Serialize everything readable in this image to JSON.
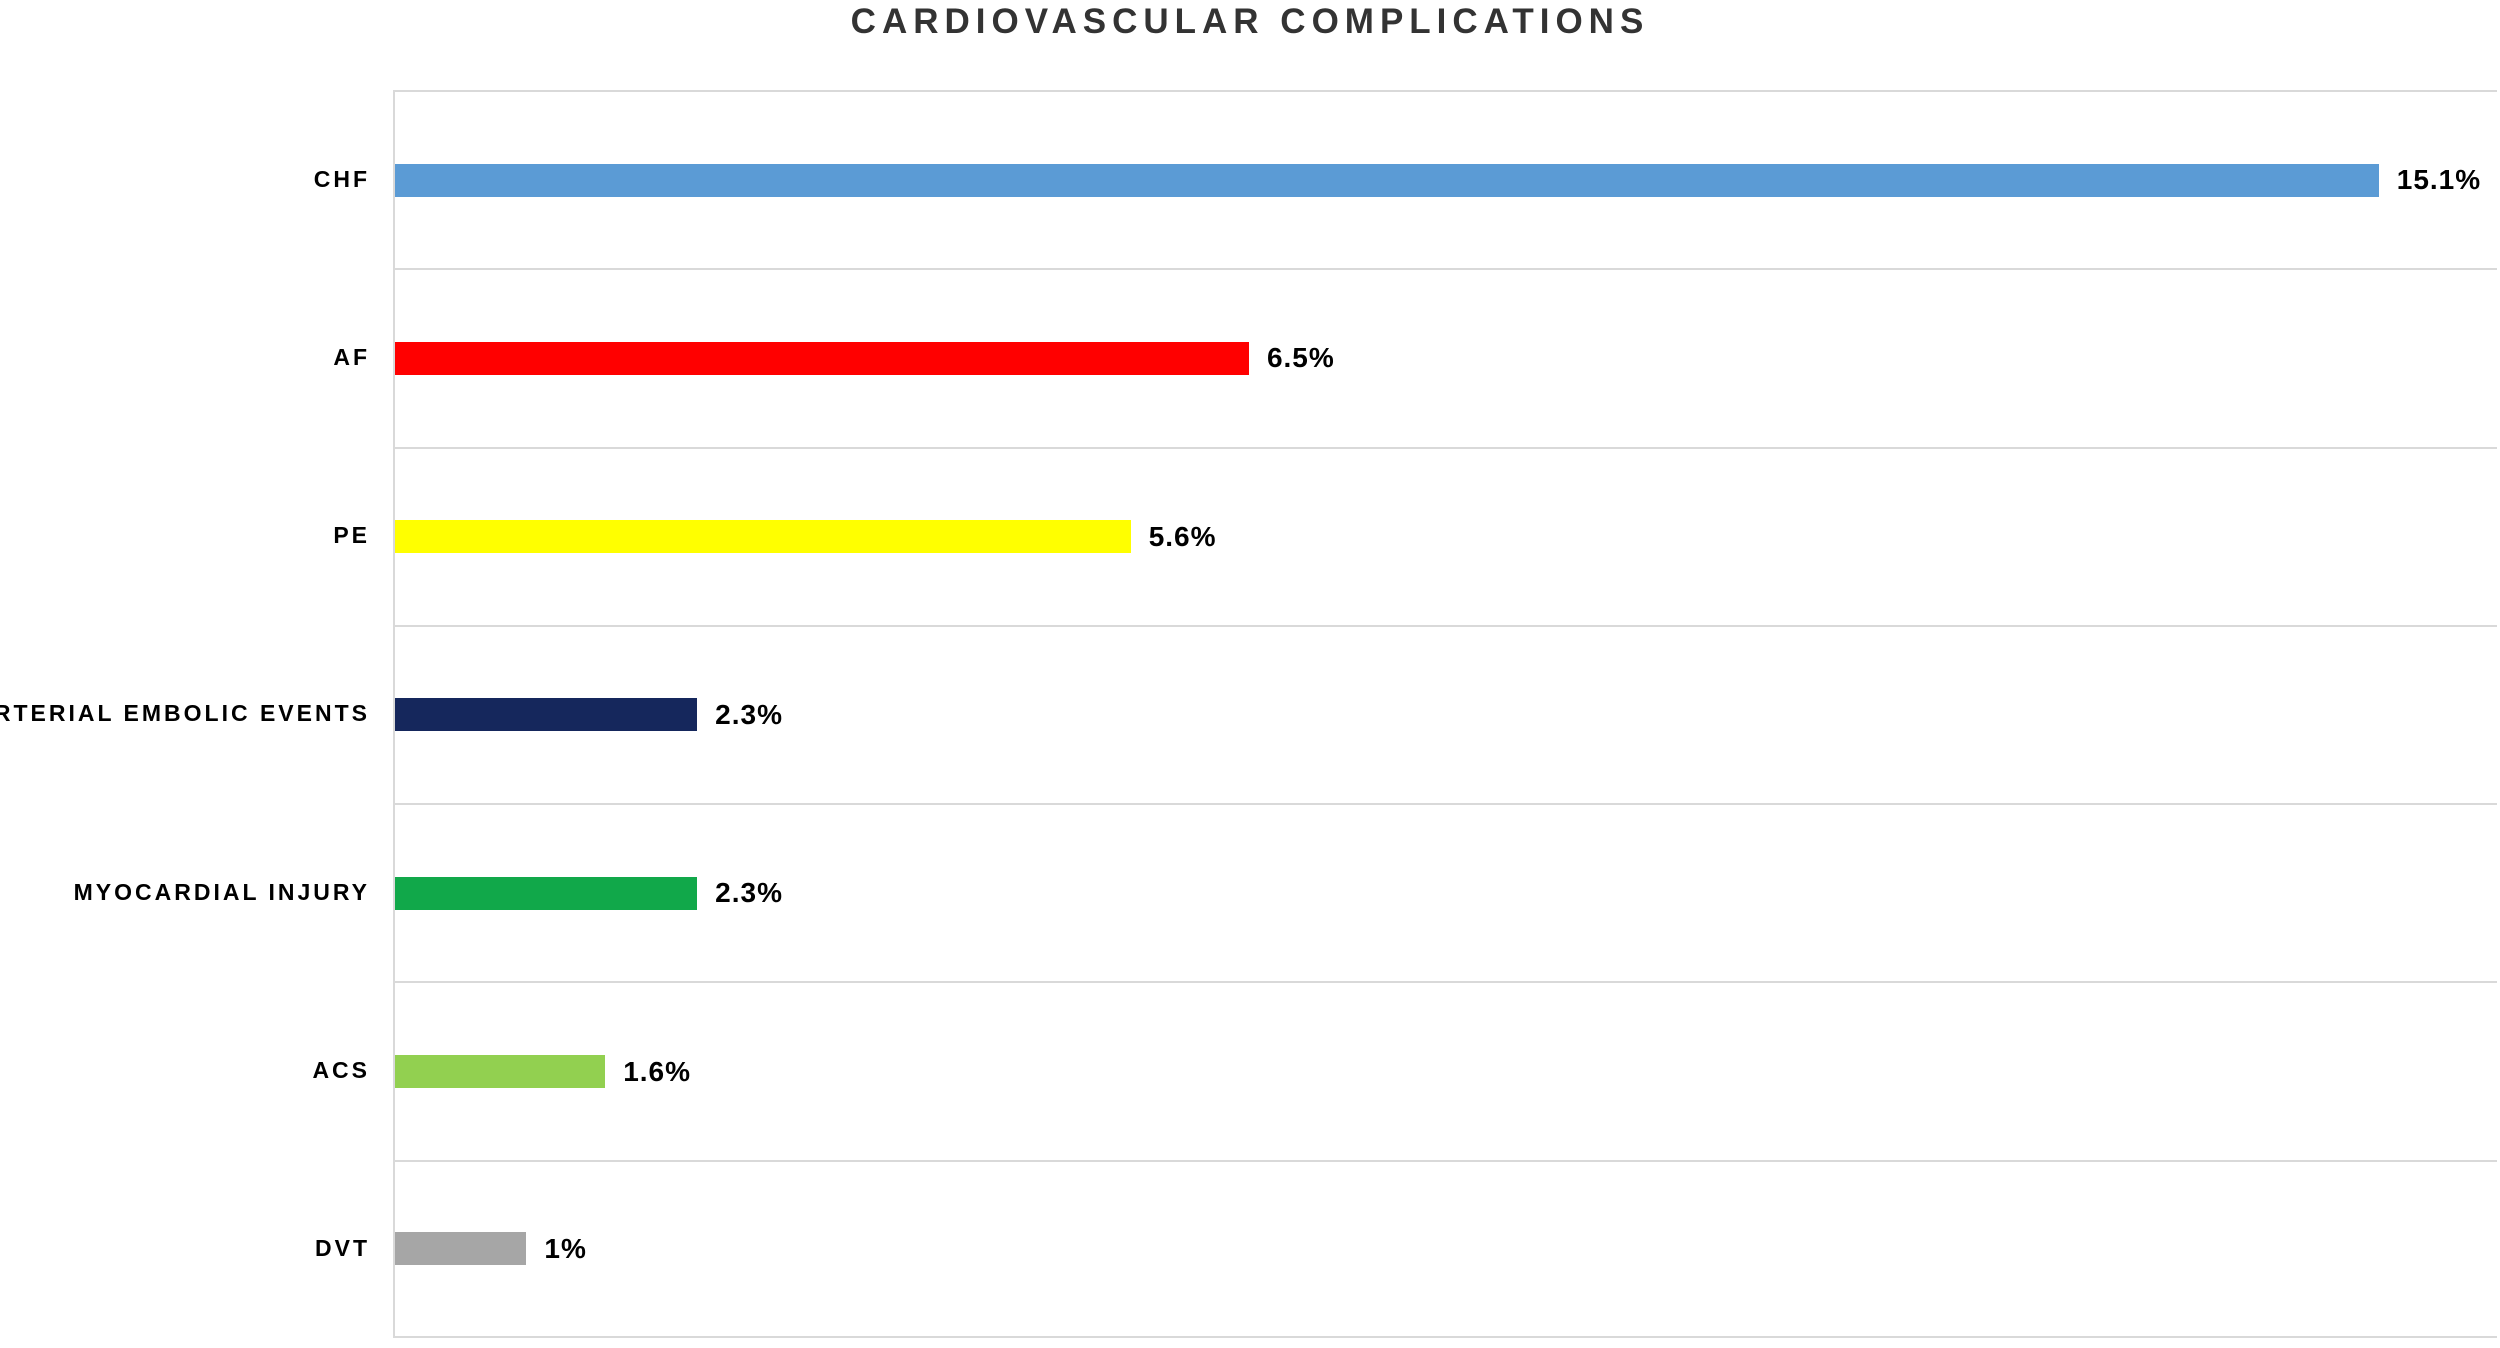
{
  "chart_data": {
    "type": "bar",
    "orientation": "horizontal",
    "title": "CARDIOVASCULAR COMPLICATIONS",
    "categories": [
      "CHF",
      "AF",
      "PE",
      "ARTERIAL EMBOLIC EVENTS",
      "MYOCARDIAL INJURY",
      "ACS",
      "DVT"
    ],
    "values": [
      15.1,
      6.5,
      5.6,
      2.3,
      2.3,
      1.6,
      1.0
    ],
    "data_labels": [
      "15.1%",
      "6.5%",
      "5.6%",
      "2.3%",
      "2.3%",
      "1.6%",
      "1%"
    ],
    "bar_colors": [
      "#5B9BD5",
      "#FF0000",
      "#FFFF00",
      "#15275C",
      "#11A84A",
      "#92D050",
      "#A6A6A6"
    ],
    "xlabel": "",
    "ylabel": "",
    "xlim": [
      0,
      16
    ],
    "legend": "none",
    "grid": "horizontal-category-boundaries",
    "gridline_color": "#D9D9D9",
    "title_color": "#333333",
    "label_color": "#000000",
    "background_color": "#FFFFFF"
  }
}
